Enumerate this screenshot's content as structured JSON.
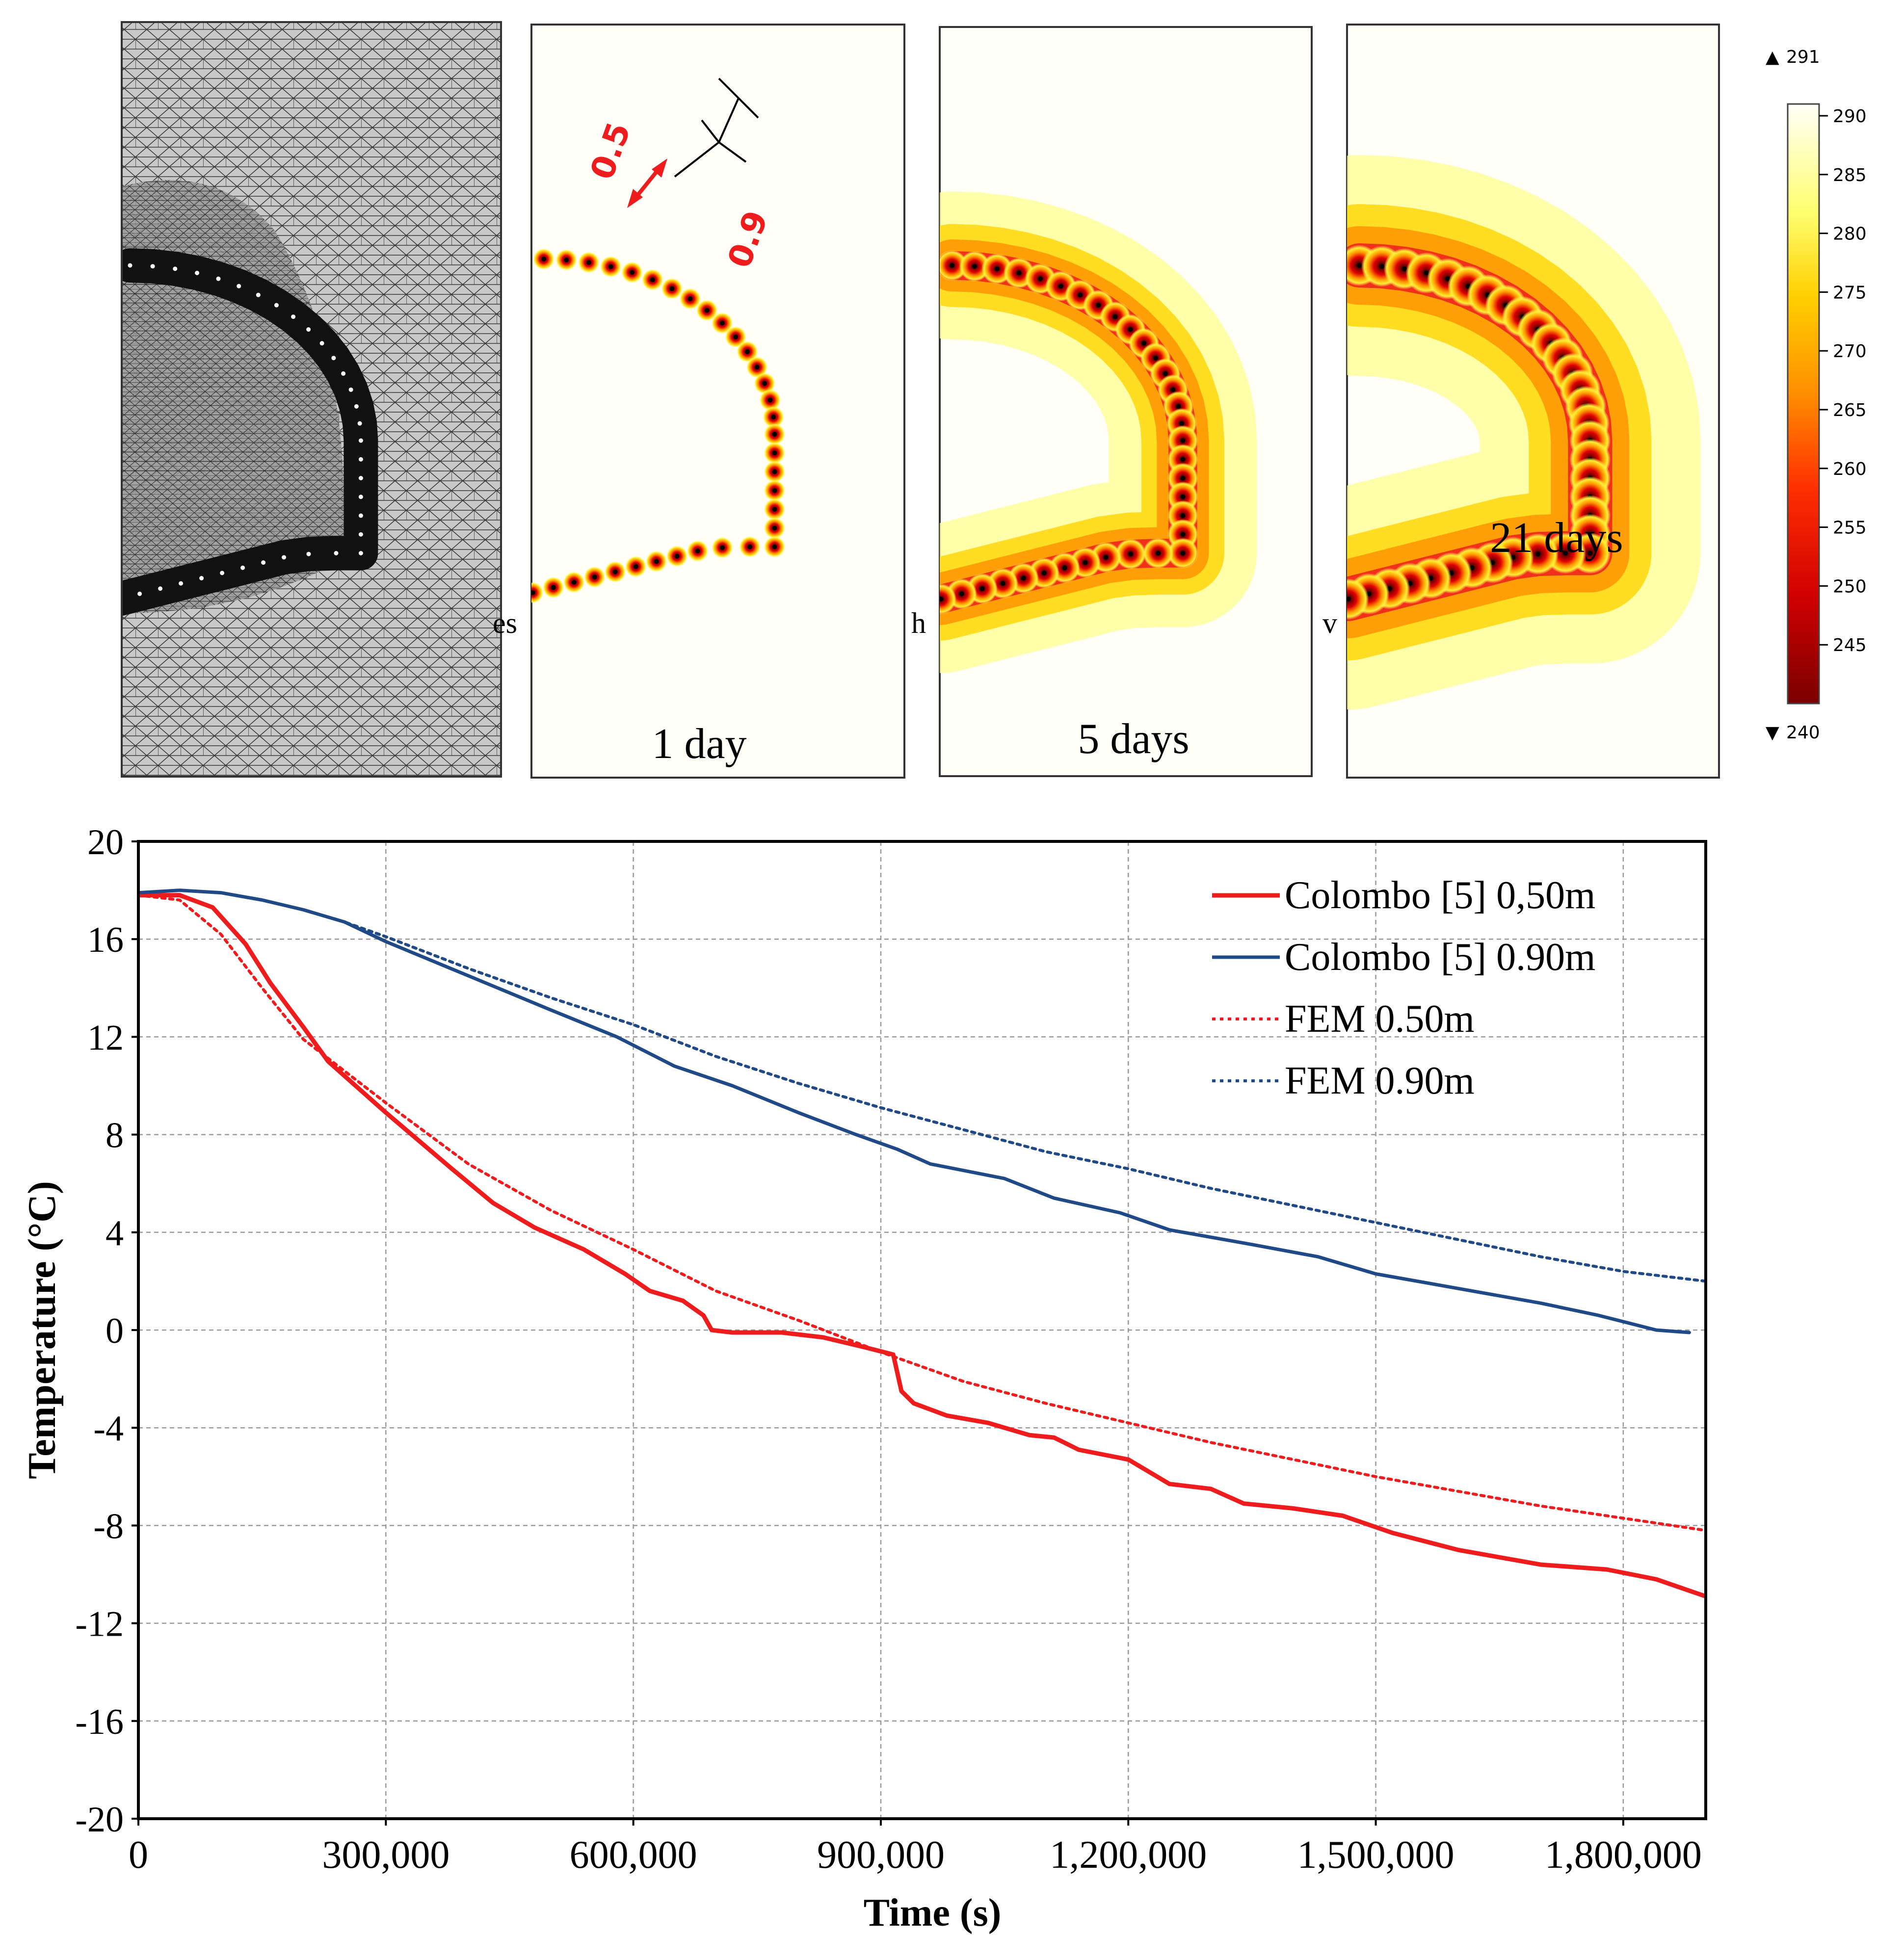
{
  "panels": [
    {
      "id": "mesh",
      "caption": ""
    },
    {
      "id": "day1",
      "caption": "1 day",
      "intensity": 0.15
    },
    {
      "id": "day5",
      "caption": "5 days",
      "intensity": 0.55
    },
    {
      "id": "day21",
      "caption": "21 days",
      "intensity": 1.0
    }
  ],
  "annotation": {
    "label_a": "0.5",
    "label_b": "0.9"
  },
  "fragments": {
    "a": "es",
    "b": "h",
    "c": "v"
  },
  "colorbar": {
    "max_label": "291",
    "min_label": "240",
    "max_marker": "▲",
    "min_marker": "▼",
    "ticks": [
      "290",
      "285",
      "280",
      "275",
      "270",
      "265",
      "260",
      "255",
      "250",
      "245"
    ],
    "tick_values": [
      290,
      285,
      280,
      275,
      270,
      265,
      260,
      255,
      250,
      245
    ],
    "range": [
      240,
      291
    ],
    "colors": [
      "#fffff8",
      "#ffff70",
      "#ffd000",
      "#ff9000",
      "#ff3000",
      "#d00000",
      "#7a0000"
    ]
  },
  "chart_data": {
    "type": "line",
    "xlabel": "Time (s)",
    "ylabel": "Temperature (°C)",
    "xlim": [
      0,
      1900000
    ],
    "ylim": [
      -20,
      20
    ],
    "x_ticks": [
      0,
      300000,
      600000,
      900000,
      1200000,
      1500000,
      1800000
    ],
    "x_tick_labels": [
      "0",
      "300,000",
      "600,000",
      "900,000",
      "1,200,000",
      "1,500,000",
      "1,800,000"
    ],
    "y_ticks": [
      20,
      16,
      12,
      8,
      4,
      0,
      -4,
      -8,
      -12,
      -16,
      -20
    ],
    "y_tick_labels": [
      "20",
      "16",
      "12",
      "8",
      "4",
      "0",
      "-4",
      "-8",
      "-12",
      "-16",
      "-20"
    ],
    "grid": true,
    "legend_position": "top-right",
    "series": [
      {
        "name": "Colombo [5] 0,50m",
        "color": "#ee1c1c",
        "style": "solid",
        "points": [
          [
            0,
            17.8
          ],
          [
            50000,
            17.8
          ],
          [
            90000,
            17.3
          ],
          [
            130000,
            15.8
          ],
          [
            160000,
            14.2
          ],
          [
            200000,
            12.4
          ],
          [
            230000,
            11.0
          ],
          [
            300000,
            8.9
          ],
          [
            380000,
            6.6
          ],
          [
            430000,
            5.2
          ],
          [
            480000,
            4.2
          ],
          [
            540000,
            3.3
          ],
          [
            590000,
            2.3
          ],
          [
            620000,
            1.6
          ],
          [
            660000,
            1.2
          ],
          [
            685000,
            0.6
          ],
          [
            695000,
            0.0
          ],
          [
            720000,
            -0.1
          ],
          [
            780000,
            -0.1
          ],
          [
            830000,
            -0.3
          ],
          [
            880000,
            -0.7
          ],
          [
            915000,
            -1.0
          ],
          [
            925000,
            -2.5
          ],
          [
            940000,
            -3.0
          ],
          [
            980000,
            -3.5
          ],
          [
            1030000,
            -3.8
          ],
          [
            1080000,
            -4.3
          ],
          [
            1110000,
            -4.4
          ],
          [
            1140000,
            -4.9
          ],
          [
            1200000,
            -5.3
          ],
          [
            1250000,
            -6.3
          ],
          [
            1300000,
            -6.5
          ],
          [
            1340000,
            -7.1
          ],
          [
            1400000,
            -7.3
          ],
          [
            1460000,
            -7.6
          ],
          [
            1520000,
            -8.3
          ],
          [
            1600000,
            -9.0
          ],
          [
            1700000,
            -9.6
          ],
          [
            1780000,
            -9.8
          ],
          [
            1840000,
            -10.2
          ],
          [
            1900000,
            -10.9
          ]
        ]
      },
      {
        "name": "Colombo [5] 0.90m",
        "color": "#1f4a87",
        "style": "solid",
        "points": [
          [
            0,
            17.9
          ],
          [
            50000,
            18.0
          ],
          [
            100000,
            17.9
          ],
          [
            150000,
            17.6
          ],
          [
            200000,
            17.2
          ],
          [
            250000,
            16.7
          ],
          [
            300000,
            15.9
          ],
          [
            400000,
            14.5
          ],
          [
            500000,
            13.1
          ],
          [
            580000,
            12.0
          ],
          [
            650000,
            10.8
          ],
          [
            720000,
            10.0
          ],
          [
            800000,
            8.9
          ],
          [
            870000,
            8.0
          ],
          [
            920000,
            7.4
          ],
          [
            960000,
            6.8
          ],
          [
            1050000,
            6.2
          ],
          [
            1110000,
            5.4
          ],
          [
            1190000,
            4.8
          ],
          [
            1250000,
            4.1
          ],
          [
            1350000,
            3.5
          ],
          [
            1430000,
            3.0
          ],
          [
            1500000,
            2.3
          ],
          [
            1600000,
            1.7
          ],
          [
            1700000,
            1.1
          ],
          [
            1770000,
            0.6
          ],
          [
            1840000,
            0.0
          ],
          [
            1880000,
            -0.1
          ]
        ]
      },
      {
        "name": "FEM 0.50m",
        "color": "#ee1c1c",
        "style": "dotted",
        "points": [
          [
            0,
            17.8
          ],
          [
            50000,
            17.6
          ],
          [
            100000,
            16.2
          ],
          [
            150000,
            14.0
          ],
          [
            200000,
            11.9
          ],
          [
            300000,
            9.3
          ],
          [
            400000,
            6.8
          ],
          [
            500000,
            4.9
          ],
          [
            600000,
            3.3
          ],
          [
            700000,
            1.6
          ],
          [
            800000,
            0.4
          ],
          [
            900000,
            -0.9
          ],
          [
            1000000,
            -2.1
          ],
          [
            1100000,
            -3.0
          ],
          [
            1200000,
            -3.8
          ],
          [
            1300000,
            -4.6
          ],
          [
            1400000,
            -5.3
          ],
          [
            1500000,
            -6.0
          ],
          [
            1600000,
            -6.6
          ],
          [
            1700000,
            -7.2
          ],
          [
            1800000,
            -7.7
          ],
          [
            1900000,
            -8.2
          ]
        ]
      },
      {
        "name": "FEM 0.90m",
        "color": "#1f4a87",
        "style": "dotted",
        "points": [
          [
            0,
            17.9
          ],
          [
            50000,
            18.0
          ],
          [
            100000,
            17.9
          ],
          [
            150000,
            17.6
          ],
          [
            200000,
            17.2
          ],
          [
            250000,
            16.7
          ],
          [
            300000,
            16.1
          ],
          [
            400000,
            14.8
          ],
          [
            500000,
            13.6
          ],
          [
            600000,
            12.5
          ],
          [
            700000,
            11.2
          ],
          [
            800000,
            10.1
          ],
          [
            900000,
            9.1
          ],
          [
            1000000,
            8.2
          ],
          [
            1100000,
            7.3
          ],
          [
            1200000,
            6.6
          ],
          [
            1300000,
            5.8
          ],
          [
            1400000,
            5.1
          ],
          [
            1500000,
            4.4
          ],
          [
            1600000,
            3.7
          ],
          [
            1700000,
            3.0
          ],
          [
            1800000,
            2.4
          ],
          [
            1900000,
            2.0
          ]
        ]
      }
    ]
  }
}
